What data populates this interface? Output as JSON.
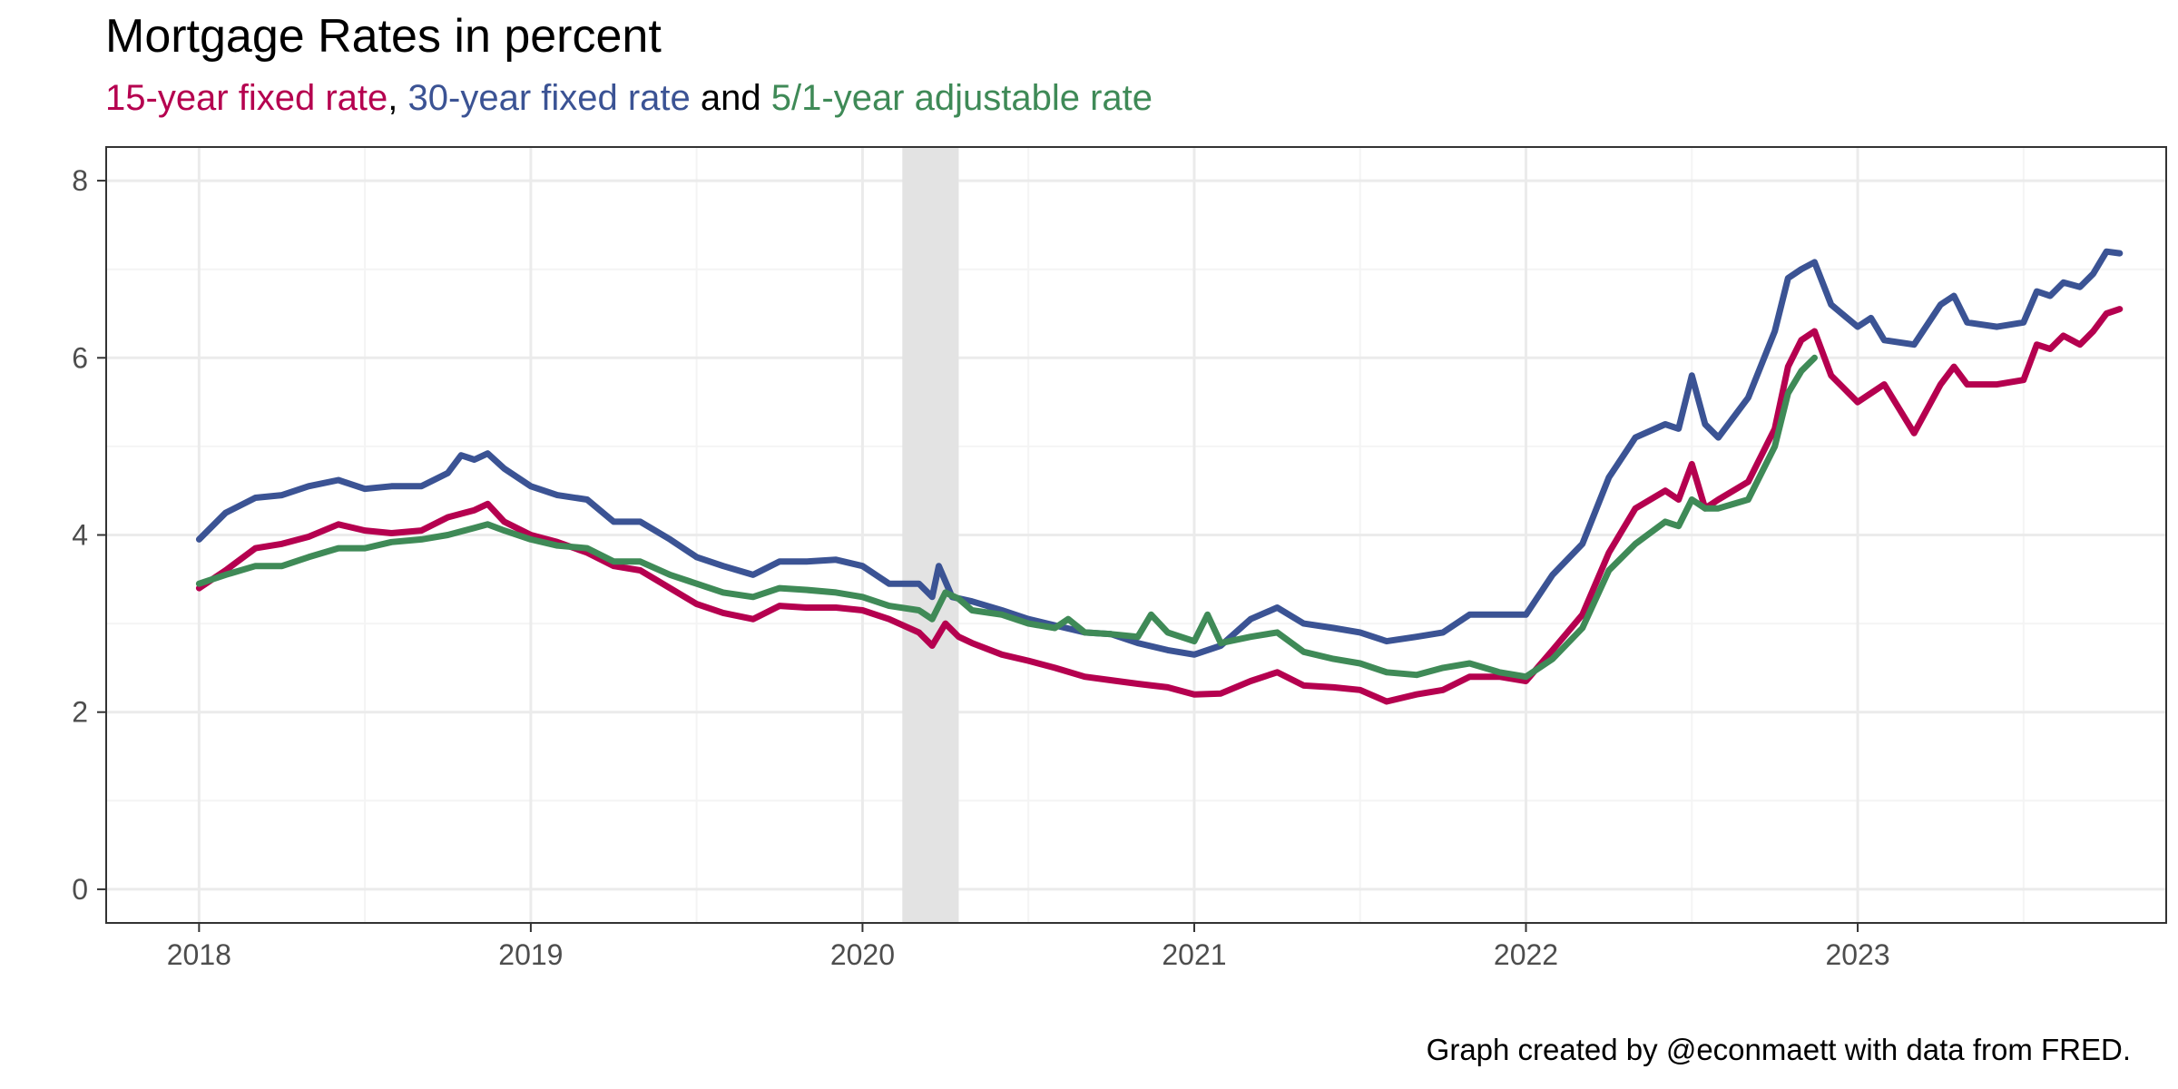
{
  "title": "Mortgage Rates in percent",
  "subtitle": {
    "part1": "15-year fixed rate",
    "sep1": ", ",
    "part2": "30-year fixed rate",
    "sep2": " and ",
    "part3": "5/1-year adjustable rate"
  },
  "caption": "Graph created by @econmaett with data from FRED.",
  "colors": {
    "fifteen": "#b5004f",
    "thirty": "#3b5394",
    "arm": "#3f8a57",
    "recession": "#e3e3e3",
    "grid_major": "#ebebeb",
    "grid_minor": "#f4f4f4"
  },
  "chart_data": {
    "type": "line",
    "title": "Mortgage Rates in percent",
    "xlabel": "",
    "ylabel": "",
    "xlim": [
      2017.72,
      2023.93
    ],
    "ylim": [
      -0.38,
      8.38
    ],
    "x_ticks": [
      2018,
      2019,
      2020,
      2021,
      2022,
      2023
    ],
    "x_tick_labels": [
      "2018",
      "2019",
      "2020",
      "2021",
      "2022",
      "2023"
    ],
    "y_ticks": [
      0,
      2,
      4,
      6,
      8
    ],
    "y_tick_labels": [
      "0",
      "2",
      "4",
      "6",
      "8"
    ],
    "grid": true,
    "shaded_regions": [
      {
        "label": "recession",
        "x0": 2020.12,
        "x1": 2020.29
      }
    ],
    "series": [
      {
        "name": "15-year fixed rate",
        "color_key": "fifteen",
        "points": [
          [
            2018.0,
            3.4
          ],
          [
            2018.08,
            3.6
          ],
          [
            2018.17,
            3.85
          ],
          [
            2018.25,
            3.9
          ],
          [
            2018.33,
            3.98
          ],
          [
            2018.42,
            4.12
          ],
          [
            2018.5,
            4.05
          ],
          [
            2018.58,
            4.02
          ],
          [
            2018.67,
            4.05
          ],
          [
            2018.75,
            4.2
          ],
          [
            2018.83,
            4.28
          ],
          [
            2018.87,
            4.35
          ],
          [
            2018.92,
            4.15
          ],
          [
            2019.0,
            4.0
          ],
          [
            2019.08,
            3.92
          ],
          [
            2019.17,
            3.8
          ],
          [
            2019.25,
            3.65
          ],
          [
            2019.33,
            3.6
          ],
          [
            2019.42,
            3.4
          ],
          [
            2019.5,
            3.22
          ],
          [
            2019.58,
            3.12
          ],
          [
            2019.67,
            3.05
          ],
          [
            2019.75,
            3.2
          ],
          [
            2019.83,
            3.18
          ],
          [
            2019.92,
            3.18
          ],
          [
            2020.0,
            3.15
          ],
          [
            2020.08,
            3.05
          ],
          [
            2020.17,
            2.9
          ],
          [
            2020.21,
            2.75
          ],
          [
            2020.25,
            3.0
          ],
          [
            2020.29,
            2.85
          ],
          [
            2020.33,
            2.78
          ],
          [
            2020.42,
            2.65
          ],
          [
            2020.5,
            2.58
          ],
          [
            2020.58,
            2.5
          ],
          [
            2020.67,
            2.4
          ],
          [
            2020.75,
            2.36
          ],
          [
            2020.83,
            2.32
          ],
          [
            2020.92,
            2.28
          ],
          [
            2021.0,
            2.2
          ],
          [
            2021.08,
            2.21
          ],
          [
            2021.17,
            2.35
          ],
          [
            2021.25,
            2.45
          ],
          [
            2021.33,
            2.3
          ],
          [
            2021.42,
            2.28
          ],
          [
            2021.5,
            2.25
          ],
          [
            2021.58,
            2.12
          ],
          [
            2021.67,
            2.2
          ],
          [
            2021.75,
            2.25
          ],
          [
            2021.83,
            2.4
          ],
          [
            2021.92,
            2.4
          ],
          [
            2022.0,
            2.35
          ],
          [
            2022.08,
            2.7
          ],
          [
            2022.17,
            3.1
          ],
          [
            2022.25,
            3.8
          ],
          [
            2022.33,
            4.3
          ],
          [
            2022.42,
            4.5
          ],
          [
            2022.46,
            4.4
          ],
          [
            2022.5,
            4.8
          ],
          [
            2022.54,
            4.3
          ],
          [
            2022.58,
            4.4
          ],
          [
            2022.67,
            4.6
          ],
          [
            2022.75,
            5.2
          ],
          [
            2022.79,
            5.9
          ],
          [
            2022.83,
            6.2
          ],
          [
            2022.87,
            6.3
          ],
          [
            2022.92,
            5.8
          ],
          [
            2023.0,
            5.5
          ],
          [
            2023.08,
            5.7
          ],
          [
            2023.17,
            5.15
          ],
          [
            2023.25,
            5.7
          ],
          [
            2023.29,
            5.9
          ],
          [
            2023.33,
            5.7
          ],
          [
            2023.42,
            5.7
          ],
          [
            2023.5,
            5.75
          ],
          [
            2023.54,
            6.15
          ],
          [
            2023.58,
            6.1
          ],
          [
            2023.62,
            6.25
          ],
          [
            2023.67,
            6.15
          ],
          [
            2023.71,
            6.3
          ],
          [
            2023.75,
            6.5
          ],
          [
            2023.79,
            6.55
          ]
        ]
      },
      {
        "name": "30-year fixed rate",
        "color_key": "thirty",
        "points": [
          [
            2018.0,
            3.95
          ],
          [
            2018.08,
            4.25
          ],
          [
            2018.17,
            4.42
          ],
          [
            2018.25,
            4.45
          ],
          [
            2018.33,
            4.55
          ],
          [
            2018.42,
            4.62
          ],
          [
            2018.5,
            4.52
          ],
          [
            2018.58,
            4.55
          ],
          [
            2018.67,
            4.55
          ],
          [
            2018.75,
            4.7
          ],
          [
            2018.79,
            4.9
          ],
          [
            2018.83,
            4.85
          ],
          [
            2018.87,
            4.92
          ],
          [
            2018.92,
            4.75
          ],
          [
            2019.0,
            4.55
          ],
          [
            2019.08,
            4.45
          ],
          [
            2019.17,
            4.4
          ],
          [
            2019.25,
            4.15
          ],
          [
            2019.33,
            4.15
          ],
          [
            2019.42,
            3.95
          ],
          [
            2019.5,
            3.75
          ],
          [
            2019.58,
            3.65
          ],
          [
            2019.67,
            3.55
          ],
          [
            2019.75,
            3.7
          ],
          [
            2019.83,
            3.7
          ],
          [
            2019.92,
            3.72
          ],
          [
            2020.0,
            3.65
          ],
          [
            2020.08,
            3.45
          ],
          [
            2020.17,
            3.45
          ],
          [
            2020.21,
            3.3
          ],
          [
            2020.23,
            3.65
          ],
          [
            2020.27,
            3.3
          ],
          [
            2020.33,
            3.25
          ],
          [
            2020.42,
            3.15
          ],
          [
            2020.5,
            3.05
          ],
          [
            2020.58,
            2.98
          ],
          [
            2020.67,
            2.9
          ],
          [
            2020.75,
            2.88
          ],
          [
            2020.83,
            2.78
          ],
          [
            2020.92,
            2.7
          ],
          [
            2021.0,
            2.65
          ],
          [
            2021.08,
            2.75
          ],
          [
            2021.17,
            3.05
          ],
          [
            2021.25,
            3.18
          ],
          [
            2021.33,
            3.0
          ],
          [
            2021.42,
            2.95
          ],
          [
            2021.5,
            2.9
          ],
          [
            2021.58,
            2.8
          ],
          [
            2021.67,
            2.85
          ],
          [
            2021.75,
            2.9
          ],
          [
            2021.83,
            3.1
          ],
          [
            2021.92,
            3.1
          ],
          [
            2022.0,
            3.1
          ],
          [
            2022.08,
            3.55
          ],
          [
            2022.17,
            3.9
          ],
          [
            2022.25,
            4.65
          ],
          [
            2022.33,
            5.1
          ],
          [
            2022.42,
            5.25
          ],
          [
            2022.46,
            5.2
          ],
          [
            2022.5,
            5.8
          ],
          [
            2022.54,
            5.25
          ],
          [
            2022.58,
            5.1
          ],
          [
            2022.67,
            5.55
          ],
          [
            2022.75,
            6.3
          ],
          [
            2022.79,
            6.9
          ],
          [
            2022.83,
            7.0
          ],
          [
            2022.87,
            7.08
          ],
          [
            2022.92,
            6.6
          ],
          [
            2023.0,
            6.35
          ],
          [
            2023.04,
            6.45
          ],
          [
            2023.08,
            6.2
          ],
          [
            2023.17,
            6.15
          ],
          [
            2023.25,
            6.6
          ],
          [
            2023.29,
            6.7
          ],
          [
            2023.33,
            6.4
          ],
          [
            2023.42,
            6.35
          ],
          [
            2023.5,
            6.4
          ],
          [
            2023.54,
            6.75
          ],
          [
            2023.58,
            6.7
          ],
          [
            2023.62,
            6.85
          ],
          [
            2023.67,
            6.8
          ],
          [
            2023.71,
            6.95
          ],
          [
            2023.75,
            7.2
          ],
          [
            2023.79,
            7.18
          ]
        ]
      },
      {
        "name": "5/1-year adjustable rate",
        "color_key": "arm",
        "points": [
          [
            2018.0,
            3.45
          ],
          [
            2018.08,
            3.55
          ],
          [
            2018.17,
            3.65
          ],
          [
            2018.25,
            3.65
          ],
          [
            2018.33,
            3.75
          ],
          [
            2018.42,
            3.85
          ],
          [
            2018.5,
            3.85
          ],
          [
            2018.58,
            3.92
          ],
          [
            2018.67,
            3.95
          ],
          [
            2018.75,
            4.0
          ],
          [
            2018.83,
            4.08
          ],
          [
            2018.87,
            4.12
          ],
          [
            2018.92,
            4.05
          ],
          [
            2019.0,
            3.95
          ],
          [
            2019.08,
            3.88
          ],
          [
            2019.17,
            3.85
          ],
          [
            2019.25,
            3.7
          ],
          [
            2019.33,
            3.7
          ],
          [
            2019.42,
            3.55
          ],
          [
            2019.5,
            3.45
          ],
          [
            2019.58,
            3.35
          ],
          [
            2019.67,
            3.3
          ],
          [
            2019.75,
            3.4
          ],
          [
            2019.83,
            3.38
          ],
          [
            2019.92,
            3.35
          ],
          [
            2020.0,
            3.3
          ],
          [
            2020.08,
            3.2
          ],
          [
            2020.17,
            3.15
          ],
          [
            2020.21,
            3.05
          ],
          [
            2020.25,
            3.35
          ],
          [
            2020.29,
            3.28
          ],
          [
            2020.33,
            3.15
          ],
          [
            2020.42,
            3.1
          ],
          [
            2020.5,
            3.0
          ],
          [
            2020.58,
            2.95
          ],
          [
            2020.62,
            3.05
          ],
          [
            2020.67,
            2.9
          ],
          [
            2020.75,
            2.88
          ],
          [
            2020.83,
            2.85
          ],
          [
            2020.87,
            3.1
          ],
          [
            2020.92,
            2.9
          ],
          [
            2021.0,
            2.8
          ],
          [
            2021.04,
            3.1
          ],
          [
            2021.08,
            2.78
          ],
          [
            2021.17,
            2.85
          ],
          [
            2021.25,
            2.9
          ],
          [
            2021.33,
            2.68
          ],
          [
            2021.42,
            2.6
          ],
          [
            2021.5,
            2.55
          ],
          [
            2021.58,
            2.45
          ],
          [
            2021.67,
            2.42
          ],
          [
            2021.75,
            2.5
          ],
          [
            2021.83,
            2.55
          ],
          [
            2021.92,
            2.45
          ],
          [
            2022.0,
            2.4
          ],
          [
            2022.08,
            2.6
          ],
          [
            2022.17,
            2.95
          ],
          [
            2022.25,
            3.6
          ],
          [
            2022.33,
            3.9
          ],
          [
            2022.42,
            4.15
          ],
          [
            2022.46,
            4.1
          ],
          [
            2022.5,
            4.4
          ],
          [
            2022.54,
            4.3
          ],
          [
            2022.58,
            4.3
          ],
          [
            2022.67,
            4.4
          ],
          [
            2022.75,
            5.0
          ],
          [
            2022.79,
            5.6
          ],
          [
            2022.83,
            5.85
          ],
          [
            2022.87,
            6.0
          ]
        ]
      }
    ]
  }
}
